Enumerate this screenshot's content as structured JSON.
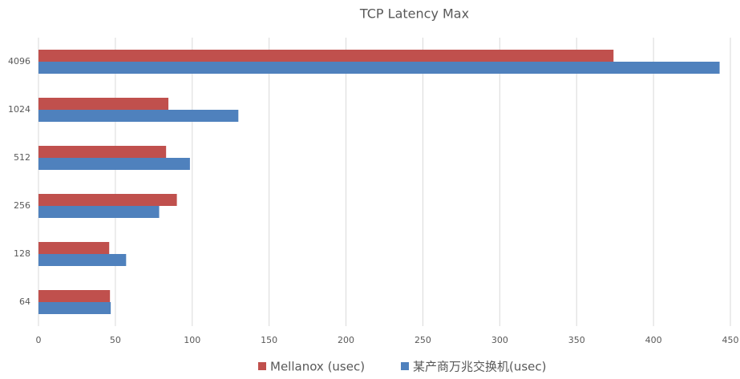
{
  "chart_data": {
    "type": "hbar",
    "title": "TCP Latency Max",
    "categories": [
      "64",
      "128",
      "256",
      "512",
      "1024",
      "4096"
    ],
    "series": [
      {
        "name": "Mellanox (usec)",
        "color": "#c0504d",
        "values": [
          46.5,
          46,
          90,
          83,
          84.5,
          374
        ]
      },
      {
        "name": "某产商万兆交换机(usec)",
        "color": "#4f81bd",
        "values": [
          47,
          57,
          78.5,
          98.5,
          130,
          443
        ]
      }
    ],
    "xlim": [
      0,
      450
    ],
    "xticks": [
      0,
      50,
      100,
      150,
      200,
      250,
      300,
      350,
      400,
      450
    ],
    "grid": true,
    "legend": "bottom"
  }
}
